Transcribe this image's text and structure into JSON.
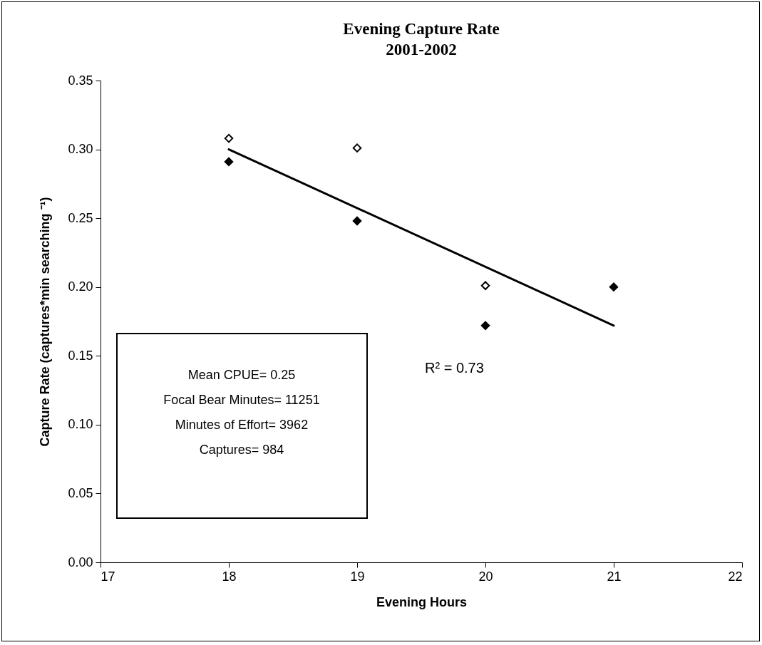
{
  "chart_data": {
    "type": "scatter",
    "title": "Evening Capture Rate",
    "subtitle": "2001-2002",
    "xlabel": "Evening Hours",
    "ylabel": "Capture Rate (captures*min searching ⁻¹)",
    "xlim": [
      17,
      22
    ],
    "xticks": [
      17,
      18,
      19,
      20,
      21,
      22
    ],
    "ylim": [
      0,
      0.35
    ],
    "yticks": [
      {
        "value": 0,
        "label": "0.00"
      },
      {
        "value": 0.05,
        "label": "0.05"
      },
      {
        "value": 0.1,
        "label": "0.10"
      },
      {
        "value": 0.15,
        "label": "0.15"
      },
      {
        "value": 0.2,
        "label": "0.20"
      },
      {
        "value": 0.25,
        "label": "0.25"
      },
      {
        "value": 0.3,
        "label": "0.30"
      },
      {
        "value": 0.35,
        "label": "0.35"
      }
    ],
    "grid": false,
    "marker": "diamond",
    "series": [
      {
        "color": "#ffffff",
        "x": [
          18,
          19,
          20
        ],
        "values": [
          0.308,
          0.301,
          0.201
        ]
      },
      {
        "color": "#000000",
        "x": [
          18,
          19,
          20,
          21
        ],
        "values": [
          0.291,
          0.248,
          0.172,
          0.2
        ]
      },
      {
        "type": "line",
        "marker": "none",
        "color": "#000000",
        "x": [
          18,
          21
        ],
        "values": [
          0.3,
          0.172
        ]
      }
    ],
    "annotations": [
      "Mean CPUE= 0.25",
      "Focal Bear Minutes= 11251",
      "Minutes of Effort= 3962",
      "Captures= 984",
      "R² = 0.73"
    ]
  }
}
